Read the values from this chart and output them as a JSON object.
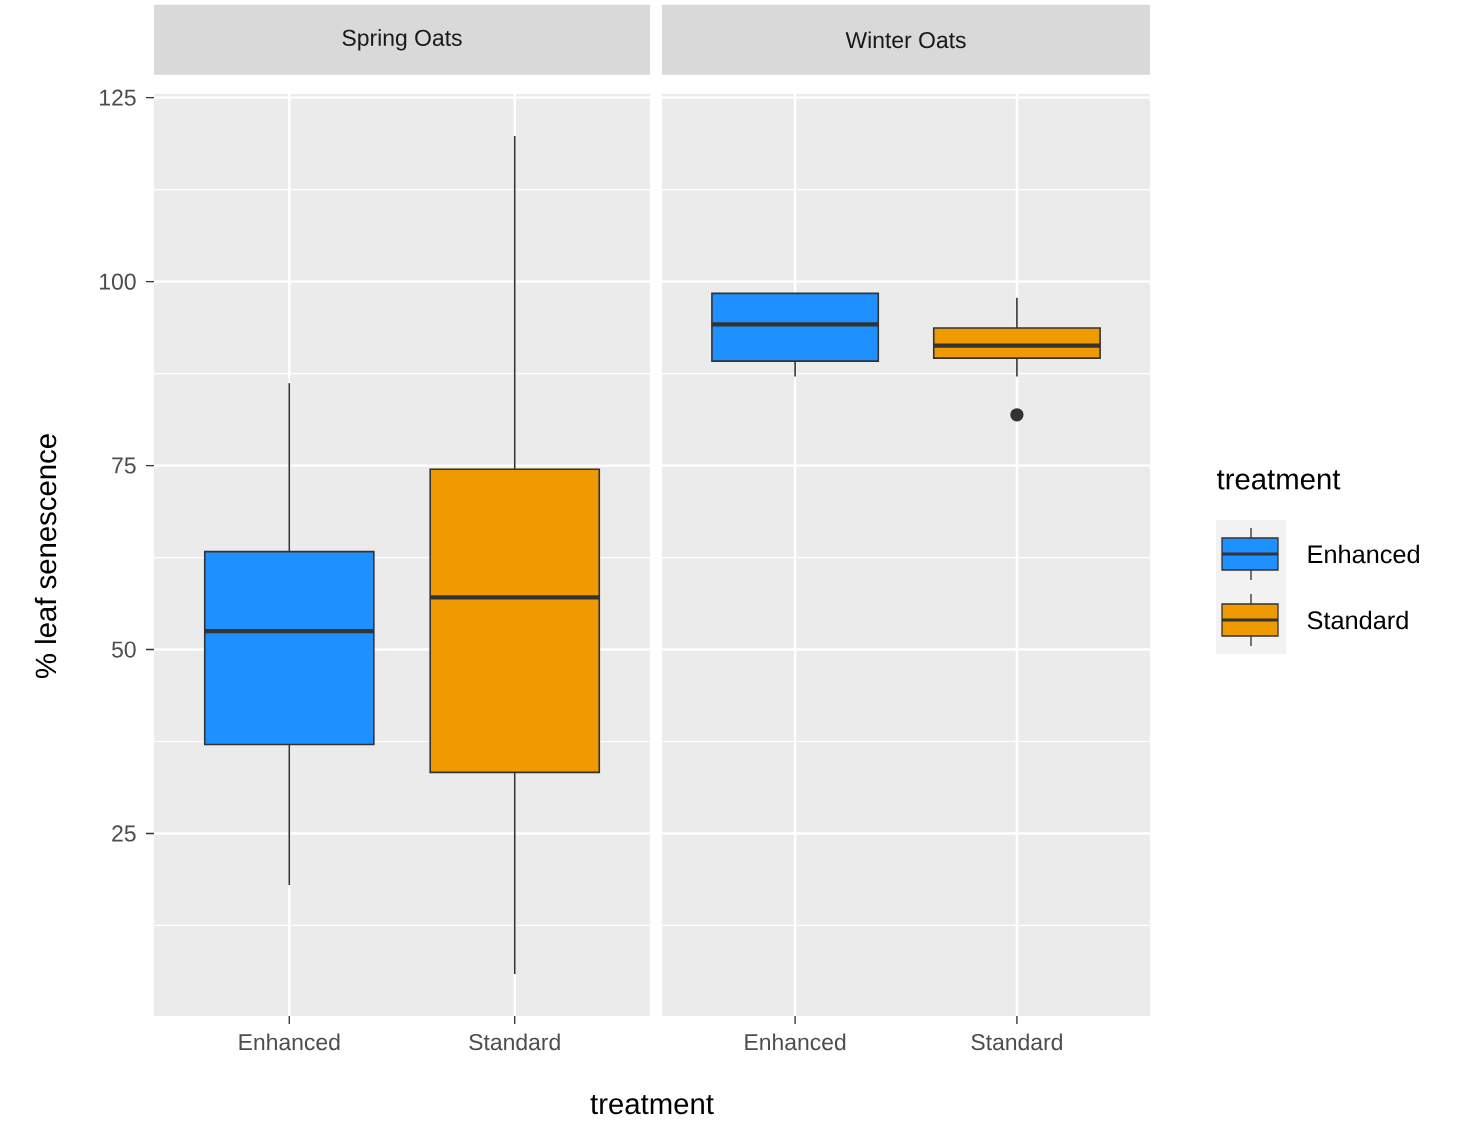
{
  "chart_data": [
    {
      "type": "box",
      "title": "Spring Oats",
      "xlabel": "treatment",
      "ylabel": "% leaf senescence",
      "categories": [
        "Enhanced",
        "Standard"
      ],
      "series": [
        {
          "color": "#1e90ff",
          "boxes": [
            {
              "low": 18,
              "q1": 37.1,
              "median": 52.5,
              "q3": 63.3,
              "high": 86.2
            },
            null
          ]
        },
        {
          "color": "#ee9a00",
          "boxes": [
            null,
            {
              "low": 5.9,
              "q1": 33.3,
              "median": 57.1,
              "q3": 74.5,
              "high": 119.8
            }
          ]
        }
      ],
      "ylim": [
        0.2,
        125.5
      ],
      "yticks": [
        25,
        50,
        75,
        100,
        125
      ],
      "grid": true
    },
    {
      "type": "box",
      "title": "Winter Oats",
      "legend_title": "treatment",
      "categories": [
        "Enhanced",
        "Standard"
      ],
      "series": [
        {
          "name": "Enhanced",
          "color": "#1e90ff",
          "boxes": [
            {
              "low": 87.1,
              "q1": 89.2,
              "median": 94.2,
              "q3": 98.4,
              "high": 98.4
            },
            null
          ]
        },
        {
          "name": "Standard",
          "color": "#ee9a00",
          "boxes": [
            null,
            {
              "low": 87.1,
              "q1": 89.6,
              "median": 91.3,
              "q3": 93.7,
              "high": 97.8,
              "outliers": [
                81.9
              ]
            }
          ]
        }
      ],
      "ylim": [
        0.2,
        125.5
      ],
      "yticks": [
        25,
        50,
        75,
        100,
        125
      ],
      "grid": true,
      "legend": "right",
      "tick_labels": "x"
    }
  ]
}
